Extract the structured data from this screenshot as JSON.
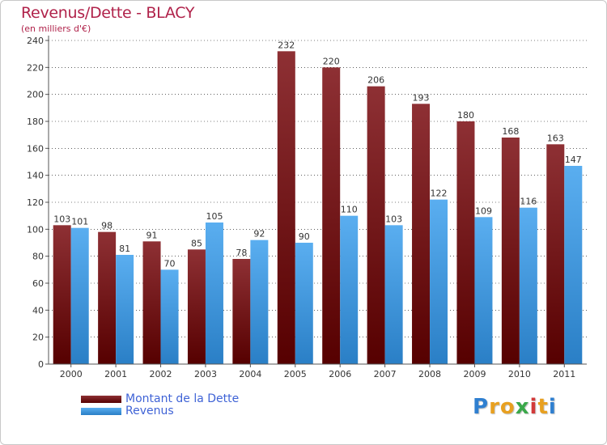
{
  "header": {
    "title": "Revenus/Dette - BLACY",
    "subtitle": "(en milliers d'€)"
  },
  "logo": {
    "text": "Proxiti",
    "letters": [
      {
        "ch": "P",
        "color": "#2f7fd0"
      },
      {
        "ch": "r",
        "color": "#e8a020"
      },
      {
        "ch": "o",
        "color": "#e8a020"
      },
      {
        "ch": "x",
        "color": "#3aa84a"
      },
      {
        "ch": "i",
        "color": "#d23a3a"
      },
      {
        "ch": "t",
        "color": "#e8a020"
      },
      {
        "ch": "i",
        "color": "#2f7fd0"
      }
    ]
  },
  "colors": {
    "dette_top": "#8e3034",
    "dette_bottom": "#560000",
    "revenus_top": "#5aaef0",
    "revenus_bottom": "#2a7fc6",
    "axis_text": "#333333",
    "grid": "#000000"
  },
  "chart_data": {
    "type": "bar",
    "title": "Revenus/Dette - BLACY",
    "subtitle": "(en milliers d'€)",
    "categories": [
      "2000",
      "2001",
      "2002",
      "2003",
      "2004",
      "2005",
      "2006",
      "2007",
      "2008",
      "2009",
      "2010",
      "2011"
    ],
    "series": [
      {
        "name": "Montant de la Dette",
        "values": [
          103,
          98,
          91,
          85,
          78,
          232,
          220,
          206,
          193,
          180,
          168,
          163
        ]
      },
      {
        "name": "Revenus",
        "values": [
          101,
          81,
          70,
          105,
          92,
          90,
          110,
          103,
          122,
          109,
          116,
          147
        ]
      }
    ],
    "ylim": [
      0,
      240
    ],
    "yticks": [
      0,
      20,
      40,
      60,
      80,
      100,
      120,
      140,
      160,
      180,
      200,
      220,
      240
    ],
    "grid": true,
    "legend_position": "bottom-left"
  }
}
